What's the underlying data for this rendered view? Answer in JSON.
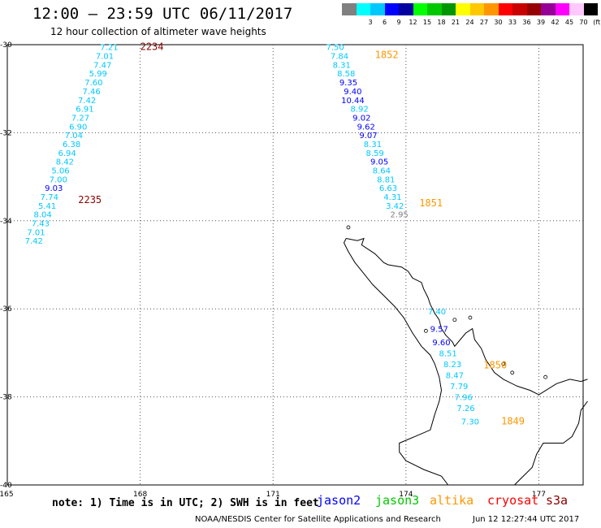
{
  "header": {
    "title": "12:00 – 23:59 UTC 06/11/2017",
    "subtitle": "12 hour collection of altimeter wave heights"
  },
  "scale": {
    "unit_label": "(ft)",
    "bins": [
      {
        "label": "",
        "color": "#808080"
      },
      {
        "label": "3",
        "color": "#00ffff"
      },
      {
        "label": "6",
        "color": "#00c8ff"
      },
      {
        "label": "9",
        "color": "#0000ff"
      },
      {
        "label": "12",
        "color": "#0000a0"
      },
      {
        "label": "15",
        "color": "#00ff00"
      },
      {
        "label": "18",
        "color": "#00c800"
      },
      {
        "label": "21",
        "color": "#009600"
      },
      {
        "label": "24",
        "color": "#ffff00"
      },
      {
        "label": "27",
        "color": "#ffc800"
      },
      {
        "label": "30",
        "color": "#ff9600"
      },
      {
        "label": "33",
        "color": "#ff0000"
      },
      {
        "label": "36",
        "color": "#c80000"
      },
      {
        "label": "39",
        "color": "#960000"
      },
      {
        "label": "42",
        "color": "#960096"
      },
      {
        "label": "45",
        "color": "#ff00ff"
      },
      {
        "label": "70",
        "color": "#ffc8ff"
      },
      {
        "label": "",
        "color": "#000000"
      }
    ]
  },
  "map": {
    "lat_labels": [
      "-30",
      "-32",
      "-34",
      "-36",
      "-38",
      "-40"
    ],
    "lon_labels": [
      "165",
      "168",
      "171",
      "174",
      "177"
    ],
    "lat_values": [
      -30,
      -32,
      -34,
      -36,
      -38,
      -40
    ],
    "lon_values": [
      165,
      168,
      171,
      174,
      177
    ]
  },
  "tracks": [
    {
      "name": "west-track",
      "pass_times": [
        {
          "text": "2234",
          "color": "#8b0000",
          "lon": 168.0,
          "lat": -30.05
        },
        {
          "text": "2235",
          "color": "#8b0000",
          "lon": 166.6,
          "lat": -33.52
        }
      ],
      "points": [
        {
          "v": "7.21",
          "lon": 167.3,
          "lat": -30.05,
          "c": "#00c8ff"
        },
        {
          "v": "7.01",
          "lon": 167.2,
          "lat": -30.25,
          "c": "#00c8ff"
        },
        {
          "v": "7.47",
          "lon": 167.15,
          "lat": -30.45,
          "c": "#00c8ff"
        },
        {
          "v": "5.99",
          "lon": 167.05,
          "lat": -30.65,
          "c": "#00c8ff"
        },
        {
          "v": "7.60",
          "lon": 166.95,
          "lat": -30.85,
          "c": "#00c8ff"
        },
        {
          "v": "7.46",
          "lon": 166.9,
          "lat": -31.05,
          "c": "#00c8ff"
        },
        {
          "v": "7.42",
          "lon": 166.8,
          "lat": -31.25,
          "c": "#00c8ff"
        },
        {
          "v": "6.91",
          "lon": 166.75,
          "lat": -31.45,
          "c": "#00c8ff"
        },
        {
          "v": "7.27",
          "lon": 166.65,
          "lat": -31.65,
          "c": "#00c8ff"
        },
        {
          "v": "6.90",
          "lon": 166.6,
          "lat": -31.85,
          "c": "#00c8ff"
        },
        {
          "v": "7.04",
          "lon": 166.5,
          "lat": -32.05,
          "c": "#00c8ff"
        },
        {
          "v": "6.38",
          "lon": 166.45,
          "lat": -32.25,
          "c": "#00c8ff"
        },
        {
          "v": "6.94",
          "lon": 166.35,
          "lat": -32.45,
          "c": "#00c8ff"
        },
        {
          "v": "8.42",
          "lon": 166.3,
          "lat": -32.65,
          "c": "#00c8ff"
        },
        {
          "v": "5.06",
          "lon": 166.2,
          "lat": -32.85,
          "c": "#00c8ff"
        },
        {
          "v": "7.00",
          "lon": 166.15,
          "lat": -33.05,
          "c": "#00c8ff"
        },
        {
          "v": "9.03",
          "lon": 166.05,
          "lat": -33.25,
          "c": "#0000ff"
        },
        {
          "v": "7.74",
          "lon": 165.95,
          "lat": -33.45,
          "c": "#00c8ff"
        },
        {
          "v": "5.41",
          "lon": 165.9,
          "lat": -33.65,
          "c": "#00c8ff"
        },
        {
          "v": "8.04",
          "lon": 165.8,
          "lat": -33.85,
          "c": "#00c8ff"
        },
        {
          "v": "7.43",
          "lon": 165.75,
          "lat": -34.05,
          "c": "#00c8ff"
        },
        {
          "v": "7.01",
          "lon": 165.65,
          "lat": -34.25,
          "c": "#00c8ff"
        },
        {
          "v": "7.42",
          "lon": 165.6,
          "lat": -34.45,
          "c": "#00c8ff"
        }
      ]
    },
    {
      "name": "north-track",
      "pass_times": [
        {
          "text": "1852",
          "color": "#ff9600",
          "lon": 173.3,
          "lat": -30.23
        },
        {
          "text": "1851",
          "color": "#ff9600",
          "lon": 174.3,
          "lat": -33.6
        }
      ],
      "points": [
        {
          "v": "7.50",
          "lon": 172.4,
          "lat": -30.05,
          "c": "#00c8ff"
        },
        {
          "v": "7.84",
          "lon": 172.5,
          "lat": -30.25,
          "c": "#00c8ff"
        },
        {
          "v": "8.31",
          "lon": 172.55,
          "lat": -30.45,
          "c": "#00c8ff"
        },
        {
          "v": "8.58",
          "lon": 172.65,
          "lat": -30.65,
          "c": "#00c8ff"
        },
        {
          "v": "9.35",
          "lon": 172.7,
          "lat": -30.85,
          "c": "#0000ff"
        },
        {
          "v": "9.40",
          "lon": 172.8,
          "lat": -31.05,
          "c": "#0000ff"
        },
        {
          "v": "10.44",
          "lon": 172.8,
          "lat": -31.25,
          "c": "#0000ff"
        },
        {
          "v": "8.92",
          "lon": 172.95,
          "lat": -31.45,
          "c": "#00c8ff"
        },
        {
          "v": "9.02",
          "lon": 173.0,
          "lat": -31.65,
          "c": "#0000ff"
        },
        {
          "v": "9.62",
          "lon": 173.1,
          "lat": -31.85,
          "c": "#0000ff"
        },
        {
          "v": "9.07",
          "lon": 173.15,
          "lat": -32.05,
          "c": "#0000ff"
        },
        {
          "v": "8.31",
          "lon": 173.25,
          "lat": -32.25,
          "c": "#00c8ff"
        },
        {
          "v": "8.59",
          "lon": 173.3,
          "lat": -32.45,
          "c": "#00c8ff"
        },
        {
          "v": "9.05",
          "lon": 173.4,
          "lat": -32.65,
          "c": "#0000ff"
        },
        {
          "v": "8.64",
          "lon": 173.45,
          "lat": -32.85,
          "c": "#00c8ff"
        },
        {
          "v": "8.81",
          "lon": 173.55,
          "lat": -33.05,
          "c": "#00c8ff"
        },
        {
          "v": "6.63",
          "lon": 173.6,
          "lat": -33.25,
          "c": "#00c8ff"
        },
        {
          "v": "4.31",
          "lon": 173.7,
          "lat": -33.45,
          "c": "#00c8ff"
        },
        {
          "v": "3.42",
          "lon": 173.75,
          "lat": -33.65,
          "c": "#00c8ff"
        },
        {
          "v": "2.95",
          "lon": 173.85,
          "lat": -33.85,
          "c": "#808080"
        }
      ]
    },
    {
      "name": "east-track",
      "pass_times": [
        {
          "text": "1850",
          "color": "#ff9600",
          "lon": 175.75,
          "lat": -37.28
        },
        {
          "text": "1849",
          "color": "#ff9600",
          "lon": 176.15,
          "lat": -38.55
        }
      ],
      "points": [
        {
          "v": "7.40",
          "lon": 174.7,
          "lat": -36.05,
          "c": "#00c8ff"
        },
        {
          "v": "9.57",
          "lon": 174.75,
          "lat": -36.45,
          "c": "#0000ff"
        },
        {
          "v": "9.60",
          "lon": 174.8,
          "lat": -36.75,
          "c": "#0000ff"
        },
        {
          "v": "8.51",
          "lon": 174.95,
          "lat": -37.0,
          "c": "#00c8ff"
        },
        {
          "v": "8.23",
          "lon": 175.05,
          "lat": -37.25,
          "c": "#00c8ff"
        },
        {
          "v": "8.47",
          "lon": 175.1,
          "lat": -37.5,
          "c": "#00c8ff"
        },
        {
          "v": "7.79",
          "lon": 175.2,
          "lat": -37.75,
          "c": "#00c8ff"
        },
        {
          "v": "7.96",
          "lon": 175.3,
          "lat": -38.0,
          "c": "#00c8ff"
        },
        {
          "v": "7.26",
          "lon": 175.35,
          "lat": -38.25,
          "c": "#00c8ff"
        },
        {
          "v": "7.30",
          "lon": 175.45,
          "lat": -38.55,
          "c": "#00c8ff"
        }
      ]
    }
  ],
  "footer": {
    "note": "note: 1) Time is in UTC; 2) SWH is in feet",
    "satellites": [
      {
        "name": "jason2",
        "color": "#0000ff"
      },
      {
        "name": "jason3",
        "color": "#00c800"
      },
      {
        "name": "altika",
        "color": "#ff9600"
      },
      {
        "name": "cryosat",
        "color": "#ff0000"
      },
      {
        "name": "s3a",
        "color": "#8b0000"
      }
    ],
    "credit": "NOAA/NESDIS Center for Satellite Applications and Research",
    "timestamp": "Jun 12 12:27:44 UTC 2017"
  }
}
